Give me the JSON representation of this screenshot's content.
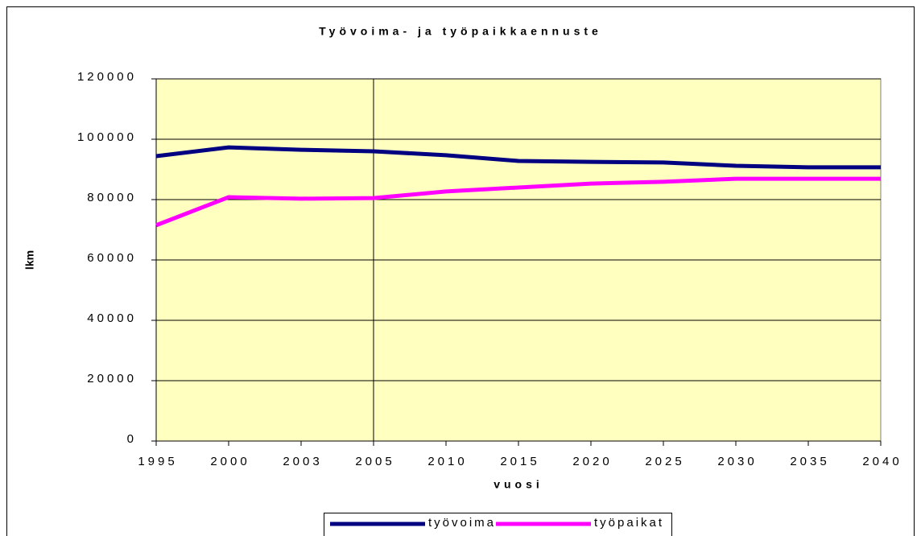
{
  "chart_data": {
    "type": "line",
    "title": "Työvoima- ja työpaikkaennuste",
    "x_label": "vuosi",
    "y_label": "lkm",
    "categories": [
      "1995",
      "2000",
      "2003",
      "2005",
      "2010",
      "2015",
      "2020",
      "2025",
      "2030",
      "2035",
      "2040"
    ],
    "series": [
      {
        "name": "työvoima",
        "color": "#000080",
        "values": [
          94400,
          97300,
          96500,
          96000,
          94700,
          92800,
          92500,
          92300,
          91200,
          90700,
          90700
        ]
      },
      {
        "name": "työpaikat",
        "color": "#ff00ff",
        "values": [
          71500,
          80800,
          80300,
          80500,
          82700,
          84000,
          85300,
          85900,
          86900,
          86900,
          86900
        ]
      }
    ],
    "ylim": [
      0,
      120000
    ],
    "yticks": [
      0,
      20000,
      40000,
      60000,
      80000,
      100000,
      120000
    ],
    "grid": true,
    "legend": "bottom"
  }
}
